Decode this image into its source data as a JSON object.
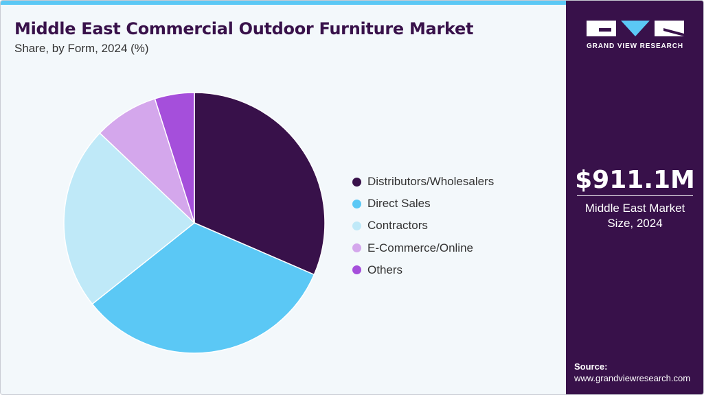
{
  "header": {
    "title": "Middle East Commercial Outdoor Furniture Market",
    "subtitle": "Share, by Form, 2024 (%)"
  },
  "colors": {
    "accent_bar": "#5bc8f5",
    "title": "#38114a",
    "panel_background": "#38114a",
    "chart_background": "#f3f8fb"
  },
  "chart_data": {
    "type": "pie",
    "title": "Middle East Commercial Outdoor Furniture Market",
    "subtitle": "Share, by Form, 2024 (%)",
    "legend_position": "right",
    "start_angle_deg": 0,
    "direction": "clockwise",
    "slices": [
      {
        "label": "Distributors/Wholesalers",
        "value": 31.5,
        "color": "#38114a"
      },
      {
        "label": "Direct Sales",
        "value": 32.8,
        "color": "#5bc8f5"
      },
      {
        "label": "Contractors",
        "value": 22.8,
        "color": "#bfe9f8"
      },
      {
        "label": "E-Commerce/Online",
        "value": 8.0,
        "color": "#d4a7ec"
      },
      {
        "label": "Others",
        "value": 4.9,
        "color": "#a54fdb"
      }
    ]
  },
  "side_panel": {
    "logo_icon": "grand-view-research-logo",
    "logo_text": "GRAND VIEW RESEARCH",
    "market_value": "$911.1M",
    "market_label_line1": "Middle East Market",
    "market_label_line2": "Size, 2024",
    "source_label": "Source:",
    "source_url": "www.grandviewresearch.com"
  }
}
